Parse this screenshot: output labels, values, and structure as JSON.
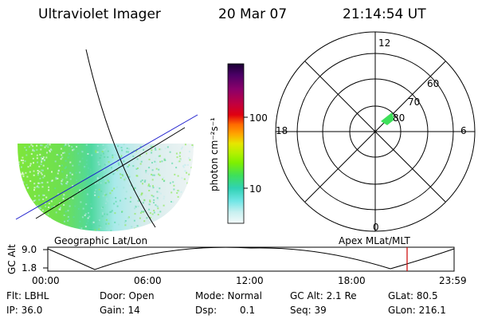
{
  "header": {
    "title": "Ultraviolet Imager",
    "date": "20 Mar 07",
    "time": "21:14:54 UT"
  },
  "colorbar": {
    "unit_label": "photon cm⁻²s⁻¹",
    "ticks": [
      "100",
      "10"
    ],
    "colors": [
      "#1a0033",
      "#4b0066",
      "#8b006a",
      "#c00040",
      "#e00010",
      "#ff6a00",
      "#ffa500",
      "#e6e600",
      "#b4f000",
      "#7ef000",
      "#3ee05a",
      "#30d2b4",
      "#70e6e6",
      "#c8f0f0",
      "#f4fafa"
    ]
  },
  "polar": {
    "mlt_labels": {
      "top": "12",
      "left": "18",
      "right": "6",
      "bottom": "0"
    },
    "lat_labels": [
      "60",
      "70",
      "80"
    ]
  },
  "panels": {
    "left_label": "Geographic Lat/Lon",
    "right_label": "Apex MLat/MLT"
  },
  "altitude_plot": {
    "axis_label": "GC Alt",
    "y_ticks": [
      "9.0",
      "1.8"
    ],
    "x_ticks": [
      "00:00",
      "06:00",
      "12:00",
      "18:00",
      "23:59"
    ],
    "marker_color": "#cc0000"
  },
  "info": {
    "flt": "Flt: LBHL",
    "door": "Door: Open",
    "mode": "Mode: Normal",
    "gcalt": "GC Alt: 2.1 Re",
    "glat": "GLat: 80.5",
    "ip": "IP: 36.0",
    "gain": "Gain: 14",
    "dsp_label": "Dsp:",
    "dsp_value": "0.1",
    "seq": "Seq: 39",
    "glon": "GLon: 216.1"
  }
}
